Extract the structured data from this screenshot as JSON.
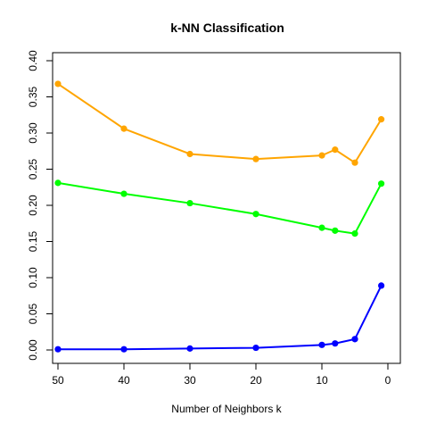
{
  "chart_data": {
    "type": "line",
    "title": "k-NN Classification",
    "xlabel": "Number of Neighbors k",
    "ylabel": "",
    "xlim": [
      50,
      0
    ],
    "ylim": [
      0,
      0.4
    ],
    "x_reversed": true,
    "grid": false,
    "legend": "none",
    "x_ticks": [
      50,
      40,
      30,
      20,
      10,
      0
    ],
    "x_tick_labels": [
      "50",
      "40",
      "30",
      "20",
      "10",
      "0"
    ],
    "y_ticks": [
      0.0,
      0.05,
      0.1,
      0.15,
      0.2,
      0.25,
      0.3,
      0.35,
      0.4
    ],
    "y_tick_labels": [
      "0.00",
      "0.05",
      "0.10",
      "0.15",
      "0.20",
      "0.25",
      "0.30",
      "0.35",
      "0.40"
    ],
    "x": [
      50,
      40,
      30,
      20,
      10,
      8,
      5,
      1
    ],
    "series": [
      {
        "color": "#FFA500",
        "values": [
          0.368,
          0.306,
          0.271,
          0.264,
          0.269,
          0.277,
          0.259,
          0.319
        ]
      },
      {
        "color": "#00FF00",
        "values": [
          0.231,
          0.216,
          0.203,
          0.188,
          0.169,
          0.165,
          0.161,
          0.23
        ]
      },
      {
        "color": "#0000FF",
        "values": [
          0.001,
          0.001,
          0.002,
          0.003,
          0.007,
          0.009,
          0.015,
          0.089
        ]
      }
    ]
  }
}
